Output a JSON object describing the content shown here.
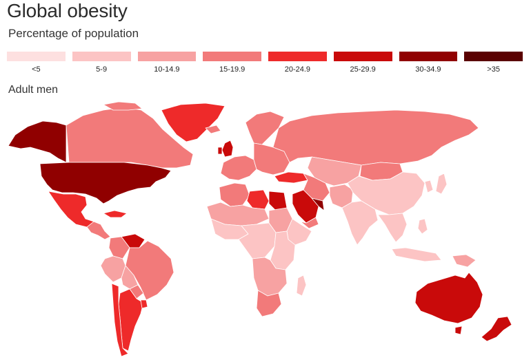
{
  "title": "Global obesity",
  "subtitle": "Percentage of population",
  "section_label": "Adult men",
  "legend": [
    {
      "label": "<5",
      "color": "#fde0e0"
    },
    {
      "label": "5-9",
      "color": "#fcc4c4"
    },
    {
      "label": "10-14.9",
      "color": "#f7a2a2"
    },
    {
      "label": "15-19.9",
      "color": "#f27a7a"
    },
    {
      "label": "20-24.9",
      "color": "#ee2a2a"
    },
    {
      "label": "25-29.9",
      "color": "#c90a0a"
    },
    {
      "label": "30-34.9",
      "color": "#900000"
    },
    {
      "label": ">35",
      "color": "#5a0000"
    }
  ],
  "map": {
    "regions": [
      {
        "name": "alaska",
        "category": 6
      },
      {
        "name": "canada",
        "category": 3
      },
      {
        "name": "greenland",
        "category": 4
      },
      {
        "name": "usa",
        "category": 6
      },
      {
        "name": "mexico",
        "category": 4
      },
      {
        "name": "central-america",
        "category": 3
      },
      {
        "name": "caribbean",
        "category": 4
      },
      {
        "name": "venezuela",
        "category": 5
      },
      {
        "name": "colombia",
        "category": 3
      },
      {
        "name": "brazil",
        "category": 3
      },
      {
        "name": "peru",
        "category": 2
      },
      {
        "name": "bolivia",
        "category": 2
      },
      {
        "name": "paraguay",
        "category": 3
      },
      {
        "name": "argentina",
        "category": 4
      },
      {
        "name": "chile",
        "category": 4
      },
      {
        "name": "uruguay",
        "category": 4
      },
      {
        "name": "iceland",
        "category": 3
      },
      {
        "name": "uk",
        "category": 5
      },
      {
        "name": "ireland",
        "category": 5
      },
      {
        "name": "scandinavia",
        "category": 3
      },
      {
        "name": "western-europe",
        "category": 3
      },
      {
        "name": "eastern-europe",
        "category": 3
      },
      {
        "name": "russia",
        "category": 3
      },
      {
        "name": "turkey",
        "category": 4
      },
      {
        "name": "caucasus-iran",
        "category": 3
      },
      {
        "name": "central-asia",
        "category": 2
      },
      {
        "name": "mongolia",
        "category": 3
      },
      {
        "name": "china",
        "category": 1
      },
      {
        "name": "korea",
        "category": 1
      },
      {
        "name": "japan",
        "category": 1
      },
      {
        "name": "south-asia",
        "category": 1
      },
      {
        "name": "pakistan-afghanistan",
        "category": 2
      },
      {
        "name": "southeast-asia",
        "category": 1
      },
      {
        "name": "indonesia",
        "category": 1
      },
      {
        "name": "philippines",
        "category": 1
      },
      {
        "name": "png",
        "category": 2
      },
      {
        "name": "saudi-arabia",
        "category": 5
      },
      {
        "name": "gulf",
        "category": 6
      },
      {
        "name": "yemen",
        "category": 3
      },
      {
        "name": "egypt",
        "category": 5
      },
      {
        "name": "libya",
        "category": 4
      },
      {
        "name": "maghreb",
        "category": 3
      },
      {
        "name": "sahel",
        "category": 2
      },
      {
        "name": "sudan",
        "category": 2
      },
      {
        "name": "horn-of-africa",
        "category": 1
      },
      {
        "name": "west-africa",
        "category": 1
      },
      {
        "name": "central-africa",
        "category": 1
      },
      {
        "name": "east-africa",
        "category": 1
      },
      {
        "name": "southern-africa",
        "category": 2
      },
      {
        "name": "south-africa",
        "category": 3
      },
      {
        "name": "madagascar",
        "category": 1
      },
      {
        "name": "australia",
        "category": 5
      },
      {
        "name": "tasmania",
        "category": 5
      },
      {
        "name": "new-zealand",
        "category": 5
      }
    ]
  }
}
